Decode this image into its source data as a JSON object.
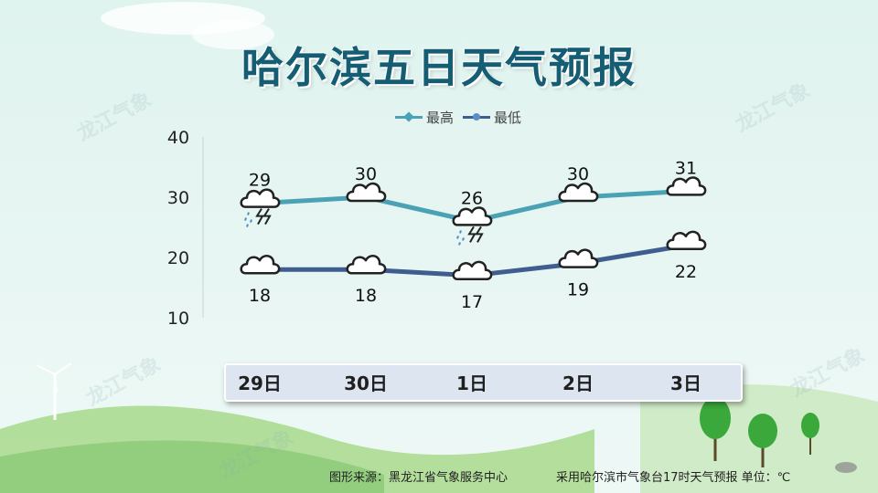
{
  "title": "哈尔滨五日天气预报",
  "legend": {
    "high": "最高",
    "low": "最低"
  },
  "colors": {
    "high": "#4aa2b4",
    "low": "#3f5d8f",
    "title": "#155d73"
  },
  "footer": {
    "source": "图形来源：黑龙江省气象服务中心",
    "note": "采用哈尔滨市气象台17时天气预报 单位：℃"
  },
  "watermark": "龙江气象",
  "weather_icons": [
    "thunderstorm-icon",
    "cloudy-icon",
    "thunderstorm-icon",
    "cloudy-icon",
    "cloudy-icon"
  ],
  "chart_data": {
    "type": "line",
    "categories": [
      "29日",
      "30日",
      "1日",
      "2日",
      "3日"
    ],
    "series": [
      {
        "name": "最高",
        "values": [
          29,
          30,
          26,
          30,
          31
        ]
      },
      {
        "name": "最低",
        "values": [
          18,
          18,
          17,
          19,
          22
        ]
      }
    ],
    "ylim": [
      10,
      40
    ],
    "yticks": [
      10,
      20,
      30,
      40
    ],
    "legend_position": "top",
    "grid": false
  }
}
